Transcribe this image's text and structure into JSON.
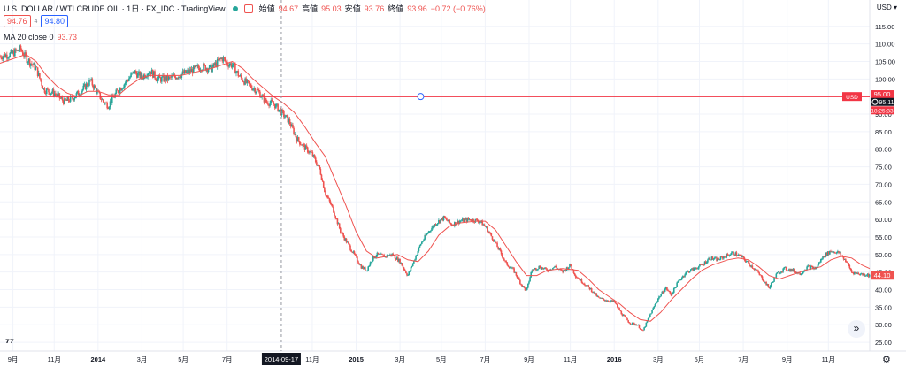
{
  "header": {
    "symbol": "U.S. DOLLAR / WTI CRUDE OIL · 1日 · FX_IDC · TradingView",
    "open_label": "始値",
    "open": "94.67",
    "high_label": "高値",
    "high": "95.03",
    "low_label": "安値",
    "low": "93.76",
    "close_label": "終値",
    "close": "93.96",
    "change": "−0.72 (−0.76%)",
    "sell_price": "94.76",
    "spread": "4",
    "buy_price": "94.80",
    "ma_label": "MA 20 close 0",
    "ma_value": "93.73",
    "currency": "USD"
  },
  "colors": {
    "up": "#26a69a",
    "down": "#ef5350",
    "ma": "#ef5350",
    "hline": "#f23645",
    "blue": "#2962ff",
    "grid": "#f0f3fa",
    "text": "#131722"
  },
  "crosshair": {
    "date_label": "2014-09-17"
  },
  "price_labels": {
    "hline_value": "95.00",
    "crosshair_price": "95.11",
    "countdown": "18:25:33",
    "line_tag": "USD",
    "current_price": "44.10"
  },
  "icons": {
    "logo": "tradingview-logo-icon",
    "scroll": "chevron-double-right-icon",
    "settings": "gear-icon",
    "crosshair_marker": "target-icon"
  },
  "chart_data": {
    "type": "candlestick",
    "title": "U.S. DOLLAR / WTI CRUDE OIL · 1日 · FX_IDC · TradingView",
    "ylim": [
      22.5,
      122.5
    ],
    "y_ticks": [
      25,
      30,
      35,
      40,
      45,
      50,
      55,
      60,
      65,
      70,
      75,
      80,
      85,
      90,
      95,
      100,
      105,
      110,
      115
    ],
    "x_range": [
      2013.62,
      2016.99
    ],
    "x_ticks": [
      {
        "label": "9月",
        "t": 2013.67
      },
      {
        "label": "11月",
        "t": 2013.83
      },
      {
        "label": "2014",
        "t": 2014.0
      },
      {
        "label": "3月",
        "t": 2014.17
      },
      {
        "label": "5月",
        "t": 2014.33
      },
      {
        "label": "7月",
        "t": 2014.5
      },
      {
        "label": "11月",
        "t": 2014.83
      },
      {
        "label": "2015",
        "t": 2015.0
      },
      {
        "label": "3月",
        "t": 2015.17
      },
      {
        "label": "5月",
        "t": 2015.33
      },
      {
        "label": "7月",
        "t": 2015.5
      },
      {
        "label": "9月",
        "t": 2015.67
      },
      {
        "label": "11月",
        "t": 2015.83
      },
      {
        "label": "2016",
        "t": 2016.0
      },
      {
        "label": "3月",
        "t": 2016.17
      },
      {
        "label": "5月",
        "t": 2016.33
      },
      {
        "label": "7月",
        "t": 2016.5
      },
      {
        "label": "9月",
        "t": 2016.67
      },
      {
        "label": "11月",
        "t": 2016.83
      }
    ],
    "close_path": [
      [
        2013.62,
        106.5
      ],
      [
        2013.66,
        107.0
      ],
      [
        2013.7,
        108.5
      ],
      [
        2013.72,
        106.0
      ],
      [
        2013.76,
        103.0
      ],
      [
        2013.79,
        97.0
      ],
      [
        2013.83,
        96.0
      ],
      [
        2013.87,
        93.5
      ],
      [
        2013.9,
        94.5
      ],
      [
        2013.94,
        97.0
      ],
      [
        2013.97,
        99.5
      ],
      [
        2013.99,
        97.0
      ],
      [
        2014.02,
        93.5
      ],
      [
        2014.04,
        92.5
      ],
      [
        2014.07,
        96.0
      ],
      [
        2014.1,
        98.5
      ],
      [
        2014.14,
        102.0
      ],
      [
        2014.17,
        100.5
      ],
      [
        2014.2,
        102.5
      ],
      [
        2014.23,
        100.0
      ],
      [
        2014.27,
        100.0
      ],
      [
        2014.31,
        101.0
      ],
      [
        2014.35,
        102.0
      ],
      [
        2014.4,
        103.5
      ],
      [
        2014.44,
        103.0
      ],
      [
        2014.48,
        106.0
      ],
      [
        2014.5,
        104.5
      ],
      [
        2014.52,
        104.0
      ],
      [
        2014.55,
        100.5
      ],
      [
        2014.58,
        98.5
      ],
      [
        2014.62,
        96.5
      ],
      [
        2014.65,
        93.5
      ],
      [
        2014.68,
        93.0
      ],
      [
        2014.71,
        90.5
      ],
      [
        2014.74,
        88.0
      ],
      [
        2014.77,
        83.0
      ],
      [
        2014.8,
        80.5
      ],
      [
        2014.83,
        78.5
      ],
      [
        2014.86,
        74.0
      ],
      [
        2014.88,
        67.5
      ],
      [
        2014.91,
        63.0
      ],
      [
        2014.94,
        56.5
      ],
      [
        2014.96,
        54.0
      ],
      [
        2015.0,
        49.0
      ],
      [
        2015.02,
        46.5
      ],
      [
        2015.04,
        45.5
      ],
      [
        2015.06,
        48.5
      ],
      [
        2015.08,
        50.0
      ],
      [
        2015.11,
        49.5
      ],
      [
        2015.14,
        50.0
      ],
      [
        2015.17,
        48.0
      ],
      [
        2015.2,
        44.0
      ],
      [
        2015.22,
        47.5
      ],
      [
        2015.25,
        53.0
      ],
      [
        2015.28,
        56.5
      ],
      [
        2015.31,
        59.0
      ],
      [
        2015.34,
        60.5
      ],
      [
        2015.37,
        58.5
      ],
      [
        2015.4,
        59.5
      ],
      [
        2015.44,
        60.0
      ],
      [
        2015.48,
        59.5
      ],
      [
        2015.5,
        58.0
      ],
      [
        2015.53,
        54.5
      ],
      [
        2015.56,
        50.5
      ],
      [
        2015.58,
        47.5
      ],
      [
        2015.61,
        45.5
      ],
      [
        2015.64,
        41.5
      ],
      [
        2015.66,
        39.5
      ],
      [
        2015.68,
        45.5
      ],
      [
        2015.71,
        46.5
      ],
      [
        2015.74,
        45.5
      ],
      [
        2015.77,
        46.5
      ],
      [
        2015.8,
        45.0
      ],
      [
        2015.83,
        47.0
      ],
      [
        2015.85,
        44.0
      ],
      [
        2015.88,
        42.0
      ],
      [
        2015.91,
        40.0
      ],
      [
        2015.94,
        37.5
      ],
      [
        2015.97,
        37.0
      ],
      [
        2016.0,
        36.5
      ],
      [
        2016.03,
        33.0
      ],
      [
        2016.06,
        30.5
      ],
      [
        2016.09,
        30.0
      ],
      [
        2016.11,
        28.0
      ],
      [
        2016.14,
        33.0
      ],
      [
        2016.17,
        37.5
      ],
      [
        2016.2,
        40.5
      ],
      [
        2016.22,
        38.5
      ],
      [
        2016.25,
        42.5
      ],
      [
        2016.28,
        45.0
      ],
      [
        2016.31,
        46.0
      ],
      [
        2016.34,
        47.0
      ],
      [
        2016.37,
        49.0
      ],
      [
        2016.4,
        48.5
      ],
      [
        2016.43,
        49.5
      ],
      [
        2016.46,
        50.5
      ],
      [
        2016.49,
        49.5
      ],
      [
        2016.52,
        47.5
      ],
      [
        2016.55,
        45.5
      ],
      [
        2016.58,
        42.5
      ],
      [
        2016.6,
        40.5
      ],
      [
        2016.63,
        44.5
      ],
      [
        2016.66,
        46.0
      ],
      [
        2016.69,
        45.5
      ],
      [
        2016.72,
        44.5
      ],
      [
        2016.75,
        46.5
      ],
      [
        2016.78,
        46.0
      ],
      [
        2016.81,
        49.5
      ],
      [
        2016.84,
        51.0
      ],
      [
        2016.87,
        50.5
      ],
      [
        2016.9,
        48.0
      ],
      [
        2016.92,
        45.0
      ],
      [
        2016.95,
        44.5
      ],
      [
        2016.99,
        44.1
      ]
    ],
    "ma_path": [
      [
        2013.62,
        104.5
      ],
      [
        2013.68,
        106.0
      ],
      [
        2013.72,
        107.0
      ],
      [
        2013.76,
        105.0
      ],
      [
        2013.8,
        101.0
      ],
      [
        2013.84,
        98.0
      ],
      [
        2013.88,
        96.0
      ],
      [
        2013.92,
        95.0
      ],
      [
        2013.96,
        96.5
      ],
      [
        2014.0,
        96.5
      ],
      [
        2014.04,
        95.5
      ],
      [
        2014.08,
        95.5
      ],
      [
        2014.12,
        98.0
      ],
      [
        2014.16,
        100.0
      ],
      [
        2014.2,
        101.0
      ],
      [
        2014.26,
        101.0
      ],
      [
        2014.32,
        101.0
      ],
      [
        2014.38,
        102.0
      ],
      [
        2014.44,
        103.0
      ],
      [
        2014.48,
        104.0
      ],
      [
        2014.52,
        105.0
      ],
      [
        2014.56,
        103.0
      ],
      [
        2014.6,
        100.0
      ],
      [
        2014.64,
        97.5
      ],
      [
        2014.68,
        95.0
      ],
      [
        2014.72,
        93.0
      ],
      [
        2014.76,
        90.5
      ],
      [
        2014.8,
        86.5
      ],
      [
        2014.84,
        82.0
      ],
      [
        2014.88,
        78.0
      ],
      [
        2014.92,
        71.0
      ],
      [
        2014.96,
        64.0
      ],
      [
        2015.0,
        56.5
      ],
      [
        2015.04,
        51.0
      ],
      [
        2015.08,
        49.0
      ],
      [
        2015.12,
        49.5
      ],
      [
        2015.16,
        50.0
      ],
      [
        2015.2,
        48.5
      ],
      [
        2015.24,
        48.0
      ],
      [
        2015.28,
        51.0
      ],
      [
        2015.32,
        55.5
      ],
      [
        2015.36,
        58.0
      ],
      [
        2015.4,
        59.0
      ],
      [
        2015.46,
        59.5
      ],
      [
        2015.5,
        59.5
      ],
      [
        2015.54,
        57.0
      ],
      [
        2015.58,
        52.5
      ],
      [
        2015.62,
        48.0
      ],
      [
        2015.66,
        44.0
      ],
      [
        2015.7,
        44.0
      ],
      [
        2015.74,
        45.5
      ],
      [
        2015.8,
        46.0
      ],
      [
        2015.86,
        45.5
      ],
      [
        2015.9,
        43.0
      ],
      [
        2015.94,
        40.0
      ],
      [
        2015.98,
        38.0
      ],
      [
        2016.02,
        36.0
      ],
      [
        2016.06,
        33.5
      ],
      [
        2016.1,
        31.5
      ],
      [
        2016.14,
        31.0
      ],
      [
        2016.18,
        33.5
      ],
      [
        2016.22,
        37.0
      ],
      [
        2016.26,
        40.0
      ],
      [
        2016.3,
        43.0
      ],
      [
        2016.34,
        45.5
      ],
      [
        2016.38,
        47.0
      ],
      [
        2016.44,
        48.5
      ],
      [
        2016.48,
        49.0
      ],
      [
        2016.52,
        48.5
      ],
      [
        2016.56,
        46.5
      ],
      [
        2016.6,
        44.0
      ],
      [
        2016.64,
        43.0
      ],
      [
        2016.68,
        44.0
      ],
      [
        2016.74,
        45.5
      ],
      [
        2016.8,
        46.5
      ],
      [
        2016.84,
        48.5
      ],
      [
        2016.88,
        49.5
      ],
      [
        2016.92,
        49.0
      ],
      [
        2016.96,
        47.0
      ],
      [
        2016.99,
        46.0
      ]
    ],
    "horizontal_line": 95.0,
    "crosshair_t": 2014.71
  }
}
